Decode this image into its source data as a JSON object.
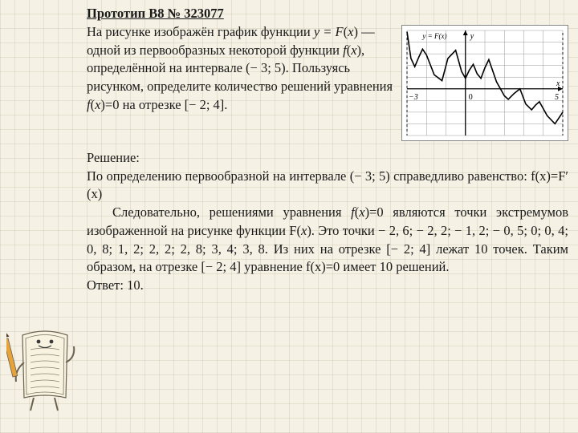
{
  "title": "Прототип B8 № 323077",
  "problem": {
    "p1_a": "На рисунке изображён график функции ",
    "p1_yeq": "y = F",
    "p1_b": "(",
    "p1_x1": "x",
    "p1_c": ") — одной из первообразных некоторой функции ",
    "p1_f": "f",
    "p1_d": "(",
    "p1_x2": "x",
    "p1_e": "), определённой на интервале (− 3; 5). Пользуясь рисунком, определите количество решений уравнения ",
    "p1_f2": "f",
    "p1_g": "(",
    "p1_x3": "x",
    "p1_h": ")=0 на отрезке [− 2; 4]."
  },
  "solution_label": "Решение:",
  "solution": {
    "s1": "По определению первообразной на интервале (− 3; 5) справедливо равенство: f(x)=F′(x)",
    "s2_a": "Следовательно, решениями уравнения ",
    "s2_f": "f",
    "s2_b": "(",
    "s2_x": "x",
    "s2_c": ")=0 являются точки экстремумов изображенной на рисунке функции F(",
    "s2_x2": "x",
    "s2_d": "). Это точки − 2, 6; − 2, 2; − 1, 2; − 0, 5; 0; 0, 4; 0, 8; 1, 2; 2, 2; 2, 8; 3, 4; 3, 8. Из них на отрезке [− 2; 4] лежат 10 точек. Таким образом, на отрезке [− 2; 4] уравнение f(x)=0  имеет 10 решений.",
    "answer": "Ответ: 10."
  },
  "chart": {
    "type": "line",
    "background_color": "#ffffff",
    "grid_color": "#9a9a9a",
    "axis_color": "#000000",
    "curve_color": "#000000",
    "curve_width": 1.6,
    "x_range": [
      -3,
      5
    ],
    "y_range": [
      -4,
      5
    ],
    "x_ticks": [
      -3,
      0,
      5
    ],
    "x_tick_labels": [
      "−3",
      "0",
      "5"
    ],
    "y_axis_label": "y",
    "x_axis_label": "x",
    "top_label": "y = F(x)",
    "grid_step": 1,
    "points": [
      [
        -3.0,
        4.9
      ],
      [
        -2.8,
        2.6
      ],
      [
        -2.6,
        1.9
      ],
      [
        -2.4,
        2.7
      ],
      [
        -2.2,
        3.4
      ],
      [
        -2.0,
        2.9
      ],
      [
        -1.6,
        1.2
      ],
      [
        -1.2,
        0.7
      ],
      [
        -0.9,
        2.6
      ],
      [
        -0.5,
        3.3
      ],
      [
        -0.2,
        1.5
      ],
      [
        0.0,
        0.9
      ],
      [
        0.2,
        1.6
      ],
      [
        0.4,
        2.1
      ],
      [
        0.6,
        1.3
      ],
      [
        0.8,
        0.9
      ],
      [
        1.0,
        1.8
      ],
      [
        1.2,
        2.5
      ],
      [
        1.6,
        0.6
      ],
      [
        2.0,
        -0.6
      ],
      [
        2.2,
        -0.9
      ],
      [
        2.5,
        -0.4
      ],
      [
        2.8,
        0.0
      ],
      [
        3.1,
        -1.3
      ],
      [
        3.4,
        -1.8
      ],
      [
        3.6,
        -1.4
      ],
      [
        3.8,
        -1.1
      ],
      [
        4.2,
        -2.3
      ],
      [
        4.6,
        -3.0
      ],
      [
        5.0,
        -2.0
      ]
    ]
  },
  "mascot": {
    "paper_fill": "#f7f3e0",
    "paper_stroke": "#6b6250",
    "pencil_fill": "#e7a23a",
    "pencil_tip": "#4a3a28",
    "eye_color": "#3a3a3a",
    "line_color": "#8a8270"
  }
}
